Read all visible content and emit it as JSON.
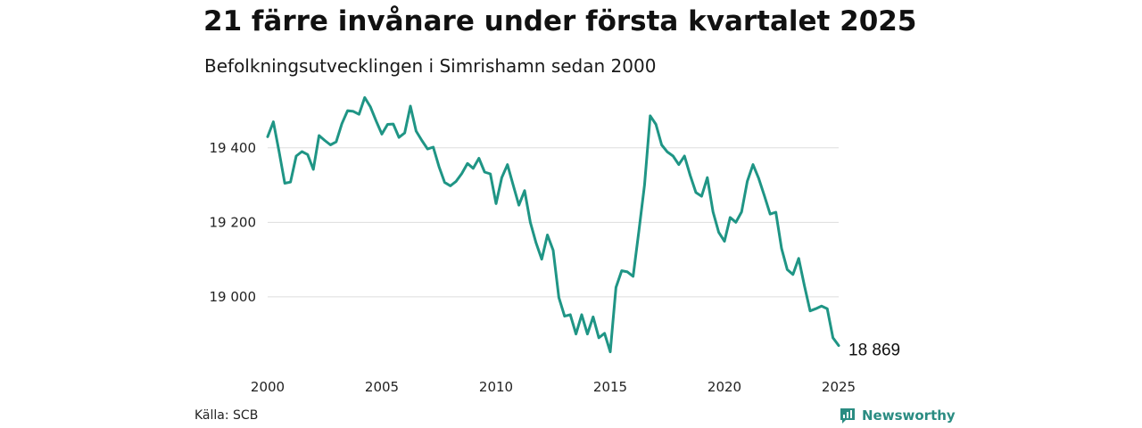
{
  "header": {
    "title": "21 färre invånare under första kvartalet 2025",
    "subtitle": "Befolkningsutvecklingen i Simrishamn sedan 2000"
  },
  "footer": {
    "source": "Källa: SCB",
    "brand": "Newsworthy"
  },
  "colors": {
    "line": "#1f9585",
    "grid": "#dddddd",
    "brand": "#2a8c82"
  },
  "chart_data": {
    "type": "line",
    "title": "21 färre invånare under första kvartalet 2025",
    "subtitle": "Befolkningsutvecklingen i Simrishamn sedan 2000",
    "xlim": [
      2000,
      2025
    ],
    "ylim": [
      18820,
      19560
    ],
    "x_ticks": [
      2000,
      2005,
      2010,
      2015,
      2020,
      2025
    ],
    "x_tick_labels": [
      "2000",
      "2005",
      "2010",
      "2015",
      "2020",
      "2025"
    ],
    "y_ticks": [
      19000,
      19200,
      19400
    ],
    "y_tick_labels": [
      "19 000",
      "19 200",
      "19 400"
    ],
    "grid": "horizontal",
    "legend": "none",
    "end_label": "18 869",
    "series": [
      {
        "x": [
          2000.0,
          2000.25,
          2000.5,
          2000.75,
          2001.0,
          2001.25,
          2001.5,
          2001.75,
          2002.0,
          2002.25,
          2002.5,
          2002.75,
          2003.0,
          2003.25,
          2003.5,
          2003.75,
          2004.0,
          2004.25,
          2004.5,
          2004.75,
          2005.0,
          2005.25,
          2005.5,
          2005.75,
          2006.0,
          2006.25,
          2006.5,
          2006.75,
          2007.0,
          2007.25,
          2007.5,
          2007.75,
          2008.0,
          2008.25,
          2008.5,
          2008.75,
          2009.0,
          2009.25,
          2009.5,
          2009.75,
          2010.0,
          2010.25,
          2010.5,
          2010.75,
          2011.0,
          2011.25,
          2011.5,
          2011.75,
          2012.0,
          2012.25,
          2012.5,
          2012.75,
          2013.0,
          2013.25,
          2013.5,
          2013.75,
          2014.0,
          2014.25,
          2014.5,
          2014.75,
          2015.0,
          2015.25,
          2015.5,
          2015.75,
          2016.0,
          2016.25,
          2016.5,
          2016.75,
          2017.0,
          2017.25,
          2017.5,
          2017.75,
          2018.0,
          2018.25,
          2018.5,
          2018.75,
          2019.0,
          2019.25,
          2019.5,
          2019.75,
          2020.0,
          2020.25,
          2020.5,
          2020.75,
          2021.0,
          2021.25,
          2021.5,
          2021.75,
          2022.0,
          2022.25,
          2022.5,
          2022.75,
          2023.0,
          2023.25,
          2023.5,
          2023.75,
          2024.0,
          2024.25,
          2024.5,
          2024.75,
          2025.0
        ],
        "values": [
          19430,
          19470,
          19390,
          19305,
          19308,
          19378,
          19390,
          19382,
          19342,
          19433,
          19420,
          19408,
          19416,
          19465,
          19500,
          19498,
          19490,
          19535,
          19510,
          19472,
          19437,
          19463,
          19464,
          19428,
          19440,
          19512,
          19445,
          19420,
          19397,
          19402,
          19350,
          19307,
          19298,
          19310,
          19331,
          19358,
          19345,
          19372,
          19335,
          19330,
          19250,
          19320,
          19355,
          19300,
          19246,
          19285,
          19200,
          19145,
          19101,
          19166,
          19125,
          18998,
          18948,
          18952,
          18900,
          18952,
          18900,
          18946,
          18890,
          18902,
          18852,
          19025,
          19070,
          19067,
          19055,
          19175,
          19300,
          19486,
          19463,
          19408,
          19389,
          19378,
          19355,
          19378,
          19326,
          19280,
          19270,
          19320,
          19228,
          19173,
          19149,
          19213,
          19200,
          19228,
          19310,
          19355,
          19318,
          19271,
          19222,
          19227,
          19130,
          19073,
          19060,
          19103,
          19030,
          18962,
          18968,
          18975,
          18968,
          18890,
          18869
        ]
      }
    ]
  }
}
